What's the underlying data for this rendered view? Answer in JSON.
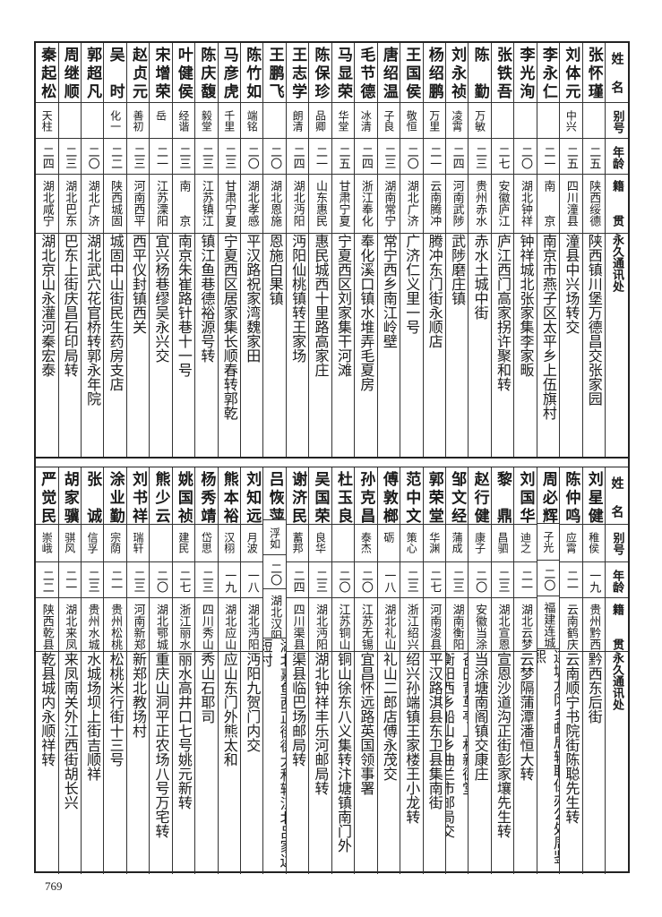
{
  "headers": {
    "name": "姓名",
    "alias": "别号",
    "age": "年龄",
    "native": "籍贯",
    "address": "永久通讯处"
  },
  "top_rows": [
    {
      "name": "张怀瑾",
      "alias": "",
      "age": "二五",
      "native": "陕西绥德",
      "address": "陕西镇川堡万德昌交张家园"
    },
    {
      "name": "刘体元",
      "alias": "中兴",
      "age": "二五",
      "native": "四川潼县",
      "address": "潼县中兴场转交"
    },
    {
      "name": "李永仁",
      "alias": "",
      "age": "二一",
      "native": "南京",
      "address": "南京市燕子区太平乡上伍旗村"
    },
    {
      "name": "李光洵",
      "alias": "",
      "age": "二〇",
      "native": "湖北钟祥",
      "address": "钟祥城北张家集李家畈"
    },
    {
      "name": "张铁吾",
      "alias": "",
      "age": "二七",
      "native": "安徽庐江",
      "address": "庐江西门高家拐许聚和转"
    },
    {
      "name": "陈勤",
      "alias": "万敏",
      "age": "二三",
      "native": "贵州赤水",
      "address": "赤水土城中街"
    },
    {
      "name": "刘永祯",
      "alias": "凌霄",
      "age": "二四",
      "native": "河南武陟",
      "address": "武陟磨庄镇"
    },
    {
      "name": "杨绍鹏",
      "alias": "万里",
      "age": "二一",
      "native": "云南腾冲",
      "address": "腾冲东门街永顺店"
    },
    {
      "name": "王国侯",
      "alias": "敬恒",
      "age": "二〇",
      "native": "湖北广济",
      "address": "广济仁义里一号"
    },
    {
      "name": "唐绍温",
      "alias": "子良",
      "age": "二三",
      "native": "湖南常宁",
      "address": "常宁西乡南江岭壁"
    },
    {
      "name": "毛节德",
      "alias": "冰清",
      "age": "二四",
      "native": "浙江奉化",
      "address": "奉化溪口镇水堆弄毛夏房"
    },
    {
      "name": "马显荣",
      "alias": "华堂",
      "age": "二五",
      "native": "甘肃宁夏",
      "address": "宁夏西区刘家集干河滩"
    },
    {
      "name": "陈保珍",
      "alias": "品卿",
      "age": "二一",
      "native": "山东惠民",
      "address": "惠民城西十里路高家庄"
    },
    {
      "name": "王志学",
      "alias": "朗清",
      "age": "二四",
      "native": "湖北沔阳",
      "address": "沔阳仙桃镇转王家场"
    },
    {
      "name": "王鹏飞",
      "alias": "",
      "age": "二〇",
      "native": "湖北恩施",
      "address": "恩施白果镇"
    },
    {
      "name": "陈竹如",
      "alias": "端铭",
      "age": "二〇",
      "native": "湖北孝感",
      "address": "平汉路祝家湾魏家田"
    },
    {
      "name": "马彦虎",
      "alias": "千里",
      "age": "二三",
      "native": "甘肃宁夏",
      "address": "宁夏西区居家集长顺春转郭乾"
    },
    {
      "name": "陈庆馥",
      "alias": "毅堂",
      "age": "二三",
      "native": "江苏镇江",
      "address": "镇江鱼巷德裕源号转"
    },
    {
      "name": "叶健侯",
      "alias": "经谐",
      "age": "二三",
      "native": "南京",
      "address": "南京朱崔路针巷十一号"
    },
    {
      "name": "宋增荣",
      "alias": "岳",
      "age": "二一",
      "native": "江苏溧阳",
      "address": "宜兴杨巷缪吴永兴交"
    },
    {
      "name": "赵贞元",
      "alias": "善初",
      "age": "二三",
      "native": "河南西平",
      "address": "西平仪封镇西关"
    },
    {
      "name": "吴时",
      "alias": "化一",
      "age": "二二",
      "native": "陕西城固",
      "address": "城固中山街民生药房支店"
    },
    {
      "name": "郭超凡",
      "alias": "",
      "age": "二〇",
      "native": "湖北广济",
      "address": "湖北武穴花官桥转郭永年院"
    },
    {
      "name": "周继顺",
      "alias": "",
      "age": "二三",
      "native": "湖北巴东",
      "address": "巴东上街庆昌石印局转"
    },
    {
      "name": "秦起松",
      "alias": "天柱",
      "age": "二四",
      "native": "湖北咸宁",
      "address": "湖北京山永灌河秦宏泰"
    }
  ],
  "bottom_rows": [
    {
      "name": "刘星健",
      "alias": "稚侯",
      "age": "一九",
      "native": "贵州黔西",
      "address": "黔西东后街"
    },
    {
      "name": "陈仲鸣",
      "alias": "应霄",
      "age": "二一",
      "native": "云南鹤庆",
      "address": "云南顺宁书院街陈聪先生转"
    },
    {
      "name": "周必辉",
      "alias": "子光",
      "age": "二〇",
      "native": "福建连城",
      "address": "连城龙冈乡邮局转联保办公处周鉴熙"
    },
    {
      "name": "刘国华",
      "alias": "迪之",
      "age": "二一",
      "native": "湖北云梦",
      "address": "云梦隔蒲潭潘恒大转"
    },
    {
      "name": "黎鼎",
      "alias": "昌驷",
      "age": "二三",
      "native": "湖北宣恩",
      "address": "宣恩沙道沟正街彭家壤先生转"
    },
    {
      "name": "赵行健",
      "alias": "康子",
      "age": "二〇",
      "native": "安徽当涂",
      "address": "当涂塘南阁镇交康庄"
    },
    {
      "name": "邹文经",
      "alias": "蒲成",
      "age": "二三",
      "native": "湖南衡阳",
      "address": "衡阳西乡船山乡曲兰市邮局交",
      "address2": "召田背草亭上村新德堂"
    },
    {
      "name": "郭荣堂",
      "alias": "华渊",
      "age": "二七",
      "native": "河南浚县",
      "address": "平汉路淇县东卫县集南街"
    },
    {
      "name": "范中文",
      "alias": "策心",
      "age": "二三",
      "native": "浙江绍兴",
      "address": "绍兴孙端镇王家楼王小龙转"
    },
    {
      "name": "傅敦榔",
      "alias": "砺",
      "age": "一八",
      "native": "湖北礼山",
      "address": "礼山二郎店傅永茂交"
    },
    {
      "name": "孙克昌",
      "alias": "泰杰",
      "age": "二〇",
      "native": "江苏无锡",
      "address": "宜昌怀远路英国领事署"
    },
    {
      "name": "杜玉良",
      "alias": "",
      "age": "二〇",
      "native": "江苏铜山",
      "address": "铜山徐东八义集转汴塘镇南门外"
    },
    {
      "name": "吴国荣",
      "alias": "良华",
      "age": "二三",
      "native": "湖北沔阳",
      "address": "湖北钟祥丰乐河邮局转"
    },
    {
      "name": "谢济民",
      "alias": "蓄邦",
      "age": "二四",
      "native": "四川渠县",
      "address": "渠县临巴场邮局转"
    },
    {
      "name": "吕恢萍",
      "alias": "浮如",
      "age": "二〇",
      "native": "湖北汉阳",
      "address": "湖北嘉鱼西正街德大和转江北吕家边短村"
    },
    {
      "name": "刘知远",
      "alias": "月波",
      "age": "一八",
      "native": "湖北沔阳",
      "address": "沔阳九贺门内交"
    },
    {
      "name": "熊本裕",
      "alias": "汉栩",
      "age": "一九",
      "native": "湖北应山",
      "address": "应山东门外熊太和"
    },
    {
      "name": "杨秀靖",
      "alias": "岱思",
      "age": "二三",
      "native": "四川秀山",
      "address": "秀山石耶司"
    },
    {
      "name": "姚国祯",
      "alias": "建民",
      "age": "二七",
      "native": "浙江丽水",
      "address": "丽水高井口七号姚元新转"
    },
    {
      "name": "熊少云",
      "alias": "",
      "age": "二〇",
      "native": "湖北鄂城",
      "address": "重庆山洞平正农场八号万宅转"
    },
    {
      "name": "刘书祥",
      "alias": "瑞轩",
      "age": "二三",
      "native": "河南新郑",
      "address": "新郑北教场村"
    },
    {
      "name": "涂业勤",
      "alias": "宗荫",
      "age": "二一",
      "native": "贵州松桃",
      "address": "松桃米行街十三号"
    },
    {
      "name": "张诚",
      "alias": "信孚",
      "age": "二三",
      "native": "贵州水城",
      "address": "水城场坝上街吉顺祥"
    },
    {
      "name": "胡家骥",
      "alias": "骐风",
      "age": "二一",
      "native": "湖北来凤",
      "address": "来凤南关外江西街胡长兴"
    },
    {
      "name": "严觉民",
      "alias": "崇峨",
      "age": "二二",
      "native": "陕西乾县",
      "address": "乾县城内永顺祥转"
    }
  ],
  "page_number": "769"
}
